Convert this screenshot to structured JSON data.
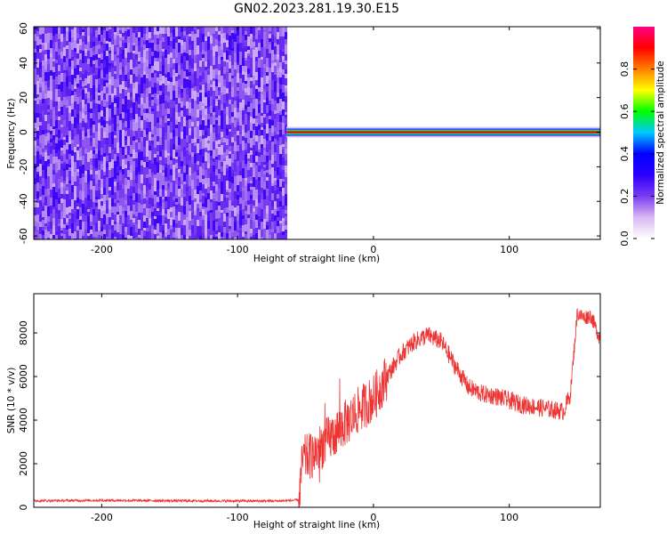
{
  "figure": {
    "title": "GN02.2023.281.19.30.E15"
  },
  "chart_data": [
    {
      "type": "heatmap",
      "xlabel": "Height of straight line (km)",
      "ylabel": "Frequency (Hz)",
      "xlim": [
        -250,
        167
      ],
      "ylim": [
        -62,
        61
      ],
      "x_ticks": [
        -200,
        -100,
        0,
        100
      ],
      "y_ticks": [
        -60,
        -40,
        -20,
        0,
        20,
        40,
        60
      ],
      "noise_region_x": [
        -250,
        -64
      ],
      "signal_region_x": [
        -64,
        167
      ],
      "signal_frequency": 0,
      "colorbar": {
        "label": "Normalized spectral amplitude",
        "range": [
          0,
          1
        ],
        "ticks": [
          0.0,
          0.2,
          0.4,
          0.6,
          0.8
        ],
        "colormap": [
          "#ffffff",
          "#d9b7f2",
          "#7a3cf0",
          "#2b00ff",
          "#0000ff",
          "#00c8ff",
          "#00ff00",
          "#ffff00",
          "#ff8000",
          "#ff0000",
          "#ff0080"
        ]
      },
      "grid": false
    },
    {
      "type": "line",
      "xlabel": "Height of straight line (km)",
      "ylabel": "SNR (10 * v/v)",
      "xlim": [
        -250,
        167
      ],
      "ylim": [
        0,
        9800
      ],
      "x_ticks": [
        -200,
        -100,
        0,
        100
      ],
      "y_ticks": [
        0,
        2000,
        4000,
        6000,
        8000
      ],
      "series": [
        {
          "color": "#ee3333",
          "x": [
            -250,
            -200,
            -150,
            -100,
            -70,
            -55,
            -52,
            -45,
            -40,
            -35,
            -30,
            -25,
            -20,
            -15,
            -10,
            0,
            10,
            20,
            30,
            40,
            50,
            60,
            70,
            80,
            90,
            100,
            110,
            120,
            130,
            140,
            145,
            150,
            155,
            160,
            167
          ],
          "y": [
            300,
            320,
            300,
            290,
            290,
            330,
            2200,
            2400,
            2700,
            3000,
            3300,
            3600,
            3900,
            4200,
            4500,
            5000,
            6000,
            7000,
            7600,
            7900,
            7600,
            6500,
            5500,
            5200,
            5100,
            4900,
            4700,
            4600,
            4500,
            4400,
            5200,
            8900,
            8700,
            8800,
            7700
          ]
        }
      ],
      "grid": false
    }
  ]
}
